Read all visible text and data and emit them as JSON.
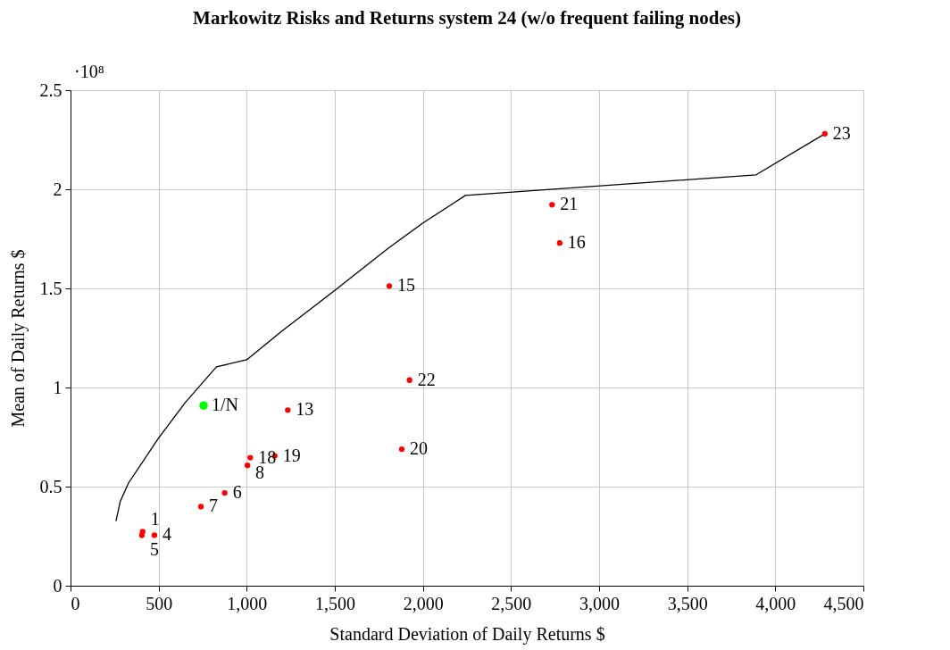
{
  "chart_data": {
    "type": "scatter",
    "title": "Markowitz Risks and Returns system 24 (w/o frequent failing nodes)",
    "xlabel": "Standard Deviation of Daily Returns $",
    "ylabel": "Mean of Daily Returns $",
    "annotations": [
      "·10⁸",
      {
        "text": "1",
        "x": 409,
        "y": 0.273
      },
      {
        "text": "4",
        "x": 476,
        "y": 0.255
      },
      {
        "text": "5",
        "x": 405,
        "y": 0.254
      },
      {
        "text": "6",
        "x": 875,
        "y": 0.468
      },
      {
        "text": "7",
        "x": 740,
        "y": 0.399
      },
      {
        "text": "8",
        "x": 1004,
        "y": 0.607
      },
      {
        "text": "13",
        "x": 1233,
        "y": 0.886
      },
      {
        "text": "15",
        "x": 1809,
        "y": 1.512
      },
      {
        "text": "16",
        "x": 2776,
        "y": 1.729
      },
      {
        "text": "18",
        "x": 1020,
        "y": 0.646
      },
      {
        "text": "19",
        "x": 1159,
        "y": 0.655
      },
      {
        "text": "20",
        "x": 1880,
        "y": 0.689
      },
      {
        "text": "21",
        "x": 2733,
        "y": 1.922
      },
      {
        "text": "22",
        "x": 1924,
        "y": 1.037
      },
      {
        "text": "23",
        "x": 4281,
        "y": 2.28
      },
      {
        "text": "1/N",
        "x": 755,
        "y": 0.909
      }
    ],
    "xlim": [
      0,
      4500
    ],
    "ylim": [
      0,
      2.5
    ],
    "xticks": [
      0,
      500,
      {
        "value": 1000,
        "label": "1,000"
      },
      {
        "value": 1500,
        "label": "1,500"
      },
      {
        "value": 2000,
        "label": "2,000"
      },
      {
        "value": 2500,
        "label": "2,500"
      },
      {
        "value": 3000,
        "label": "3,000"
      },
      {
        "value": 3500,
        "label": "3,500"
      },
      {
        "value": 4000,
        "label": "4,000"
      },
      {
        "value": 4500,
        "label": "4,500"
      }
    ],
    "yticks": [
      0,
      0.5,
      1,
      1.5,
      2,
      2.5
    ],
    "grid": true,
    "marker": "circle",
    "legend": false,
    "series": [
      {
        "type": "line",
        "color": "#000000",
        "marker": "none",
        "line_style": "solid",
        "x": [
          258,
          282,
          329,
          498,
          650,
          828,
          1000,
          1200,
          1500,
          1800,
          2000,
          2241,
          3891,
          4281
        ],
        "values": [
          0.326,
          0.425,
          0.518,
          0.743,
          0.923,
          1.104,
          1.14,
          1.285,
          1.49,
          1.7,
          1.83,
          1.969,
          2.073,
          2.28
        ]
      },
      {
        "color": "#ff0000",
        "x": [
          409,
          476,
          405,
          875,
          740,
          1004,
          1233,
          1809,
          2776,
          1020,
          1159,
          1880,
          2733,
          1924,
          4281
        ],
        "values": [
          0.273,
          0.255,
          0.254,
          0.468,
          0.399,
          0.607,
          0.886,
          1.512,
          1.729,
          0.646,
          0.655,
          0.689,
          1.922,
          1.037,
          2.28
        ]
      },
      {
        "color": "#00ff00",
        "x": [
          755
        ],
        "values": [
          0.909
        ]
      }
    ]
  }
}
